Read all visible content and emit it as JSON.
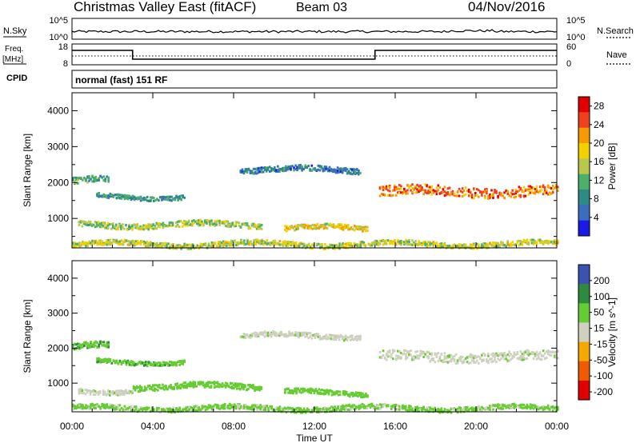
{
  "header": {
    "title": "Christmas Valley East (fitACF)",
    "beam": "Beam 03",
    "date": "04/Nov/2016"
  },
  "strip1": {
    "left_label": "N.Sky",
    "right_label": "N.Search",
    "ticks_left": [
      "10^5",
      "10^0"
    ],
    "ticks_right": [
      "10^5",
      "10^0"
    ]
  },
  "strip2": {
    "left_label_1": "Freq.",
    "left_label_2": "[MHz]",
    "right_label": "Nave",
    "ticks_left": [
      "18",
      "8"
    ],
    "ticks_right": [
      "60",
      "0"
    ],
    "freq_steps": [
      {
        "start": "00:00",
        "level": "high"
      },
      {
        "start": "03:00",
        "level": "low"
      },
      {
        "start": "15:00",
        "level": "high"
      }
    ]
  },
  "cpid": {
    "label": "CPID",
    "value": "normal (fast) 151 RF"
  },
  "chart_data": [
    {
      "type": "heatmap",
      "title": "Power",
      "xlabel": "Time UT",
      "ylabel": "Slant Range [km]",
      "x_ticks": [
        "00:00",
        "04:00",
        "08:00",
        "12:00",
        "16:00",
        "20:00",
        "00:00"
      ],
      "y_ticks": [
        "1000",
        "2000",
        "3000",
        "4000"
      ],
      "xlim": [
        0,
        24
      ],
      "ylim": [
        180,
        4500
      ],
      "colorbar": {
        "label": "Power [dB]",
        "ticks": [
          "4",
          "8",
          "12",
          "16",
          "20",
          "24",
          "28"
        ],
        "range": [
          0,
          30
        ]
      },
      "features": [
        {
          "t_start": 0.0,
          "t_end": 1.8,
          "range": 2050,
          "width": 180,
          "value": 10
        },
        {
          "t_start": 1.2,
          "t_end": 5.6,
          "range": 1600,
          "width": 120,
          "value": 8
        },
        {
          "t_start": 0.3,
          "t_end": 9.4,
          "range": 820,
          "width": 160,
          "value": 14
        },
        {
          "t_start": 10.5,
          "t_end": 14.6,
          "range": 720,
          "width": 140,
          "value": 18
        },
        {
          "t_start": 8.3,
          "t_end": 14.3,
          "range": 2350,
          "width": 150,
          "value": 6
        },
        {
          "t_start": 15.2,
          "t_end": 24.0,
          "range": 1750,
          "width": 280,
          "value": 24
        },
        {
          "t_start": 0.0,
          "t_end": 24.0,
          "range": 280,
          "width": 140,
          "value": 16
        }
      ]
    },
    {
      "type": "heatmap",
      "title": "Velocity",
      "xlabel": "Time UT",
      "ylabel": "Slant Range [km]",
      "x_ticks": [
        "00:00",
        "04:00",
        "08:00",
        "12:00",
        "16:00",
        "20:00",
        "00:00"
      ],
      "y_ticks": [
        "1000",
        "2000",
        "3000",
        "4000"
      ],
      "xlim": [
        0,
        24
      ],
      "ylim": [
        180,
        4500
      ],
      "colorbar": {
        "label": "Velocity [m s^-1]",
        "ticks": [
          "200",
          "100",
          "50",
          "15",
          "-15",
          "-50",
          "-100",
          "-200"
        ],
        "range": [
          -250,
          250
        ]
      },
      "features": [
        {
          "t_start": 0.0,
          "t_end": 1.8,
          "range": 2050,
          "width": 180,
          "value": 40
        },
        {
          "t_start": 1.2,
          "t_end": 5.6,
          "range": 1600,
          "width": 120,
          "value": 40
        },
        {
          "t_start": 3.0,
          "t_end": 9.4,
          "range": 900,
          "width": 160,
          "value": 30
        },
        {
          "t_start": 0.3,
          "t_end": 3.0,
          "range": 780,
          "width": 140,
          "value": 0
        },
        {
          "t_start": 10.5,
          "t_end": 14.6,
          "range": 720,
          "width": 140,
          "value": 30
        },
        {
          "t_start": 8.3,
          "t_end": 14.3,
          "range": 2350,
          "width": 150,
          "value": 0
        },
        {
          "t_start": 15.2,
          "t_end": 24.0,
          "range": 1750,
          "width": 280,
          "value": 0
        },
        {
          "t_start": 0.0,
          "t_end": 24.0,
          "range": 280,
          "width": 140,
          "value": 20
        }
      ]
    }
  ],
  "colors": {
    "power_scale": [
      "#1a1ae6",
      "#3b6cc0",
      "#2d8a87",
      "#4caf6a",
      "#b8c84a",
      "#f5d000",
      "#f59a00",
      "#f04020",
      "#e00000"
    ],
    "velocity_scale": [
      "#e00000",
      "#f05a00",
      "#f5a800",
      "#d0d0c0",
      "#66cc33",
      "#2d8a3e",
      "#3a52b0"
    ]
  }
}
